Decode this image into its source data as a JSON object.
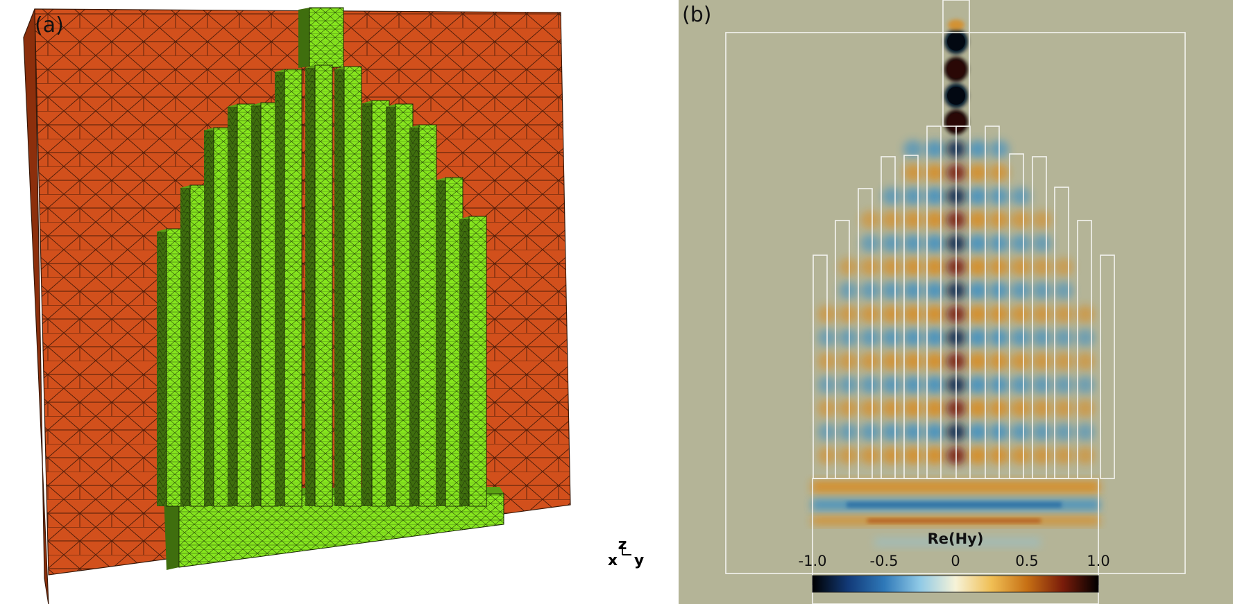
{
  "panel_a": {
    "label": "(a)",
    "axes_triad": {
      "x": "x",
      "y": "y",
      "z": "z"
    },
    "colors": {
      "substrate_face": "#d2501c",
      "substrate_side": "#8c2f0c",
      "substrate_edge": "#3a1a0a",
      "waveguide_face": "#86e61e",
      "waveguide_side": "#3f6e0e",
      "mesh_line": "#1a1a1a"
    }
  },
  "panel_b": {
    "label": "(b)",
    "background": "#b4b497",
    "outline_color": "#f4f4f0",
    "colorbar": {
      "title": "Re(Hy)",
      "ticks": [
        "-1.0",
        "-0.5",
        "0",
        "0.5",
        "1.0"
      ],
      "min": -1.0,
      "max": 1.0,
      "colormap": [
        "#000000",
        "#123a78",
        "#2e78b8",
        "#8fc9e6",
        "#f6f3d8",
        "#f0bf55",
        "#c77014",
        "#7a1c0a",
        "#000000"
      ]
    }
  }
}
